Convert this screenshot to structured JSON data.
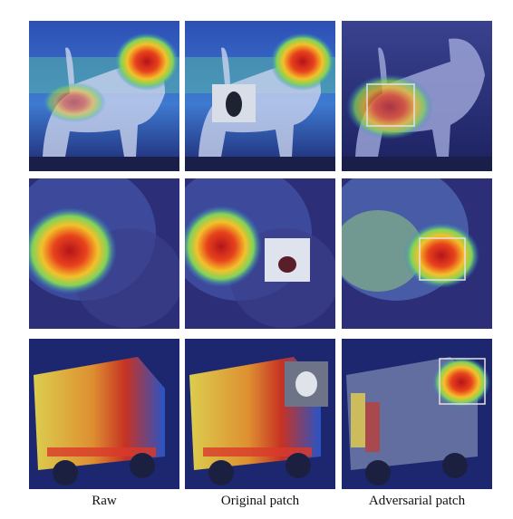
{
  "captions": {
    "col1": "Raw",
    "col2": "Original patch",
    "col3": "Adversarial patch"
  }
}
